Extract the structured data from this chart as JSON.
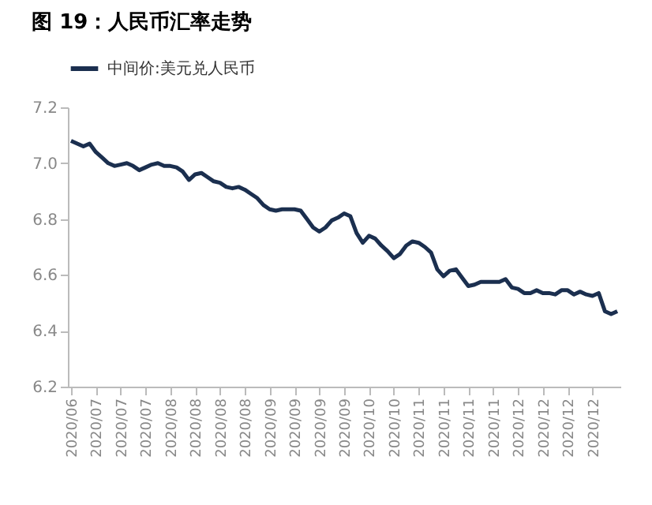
{
  "chart_data": {
    "type": "line",
    "title": "图 19：人民币汇率走势",
    "categories": [
      "2020/06",
      null,
      null,
      null,
      "2020/07",
      null,
      null,
      null,
      "2020/07",
      null,
      null,
      null,
      "2020/07",
      null,
      null,
      null,
      "2020/08",
      null,
      null,
      null,
      "2020/08",
      null,
      null,
      null,
      "2020/08",
      null,
      null,
      null,
      "2020/08",
      null,
      null,
      null,
      "2020/09",
      null,
      null,
      null,
      "2020/09",
      null,
      null,
      null,
      "2020/09",
      null,
      null,
      null,
      "2020/09",
      null,
      null,
      null,
      "2020/10",
      null,
      null,
      null,
      "2020/10",
      null,
      null,
      null,
      "2020/11",
      null,
      null,
      null,
      "2020/11",
      null,
      null,
      null,
      "2020/11",
      null,
      null,
      null,
      "2020/11",
      null,
      null,
      null,
      "2020/12",
      null,
      null,
      null,
      "2020/12",
      null,
      null,
      null,
      "2020/12",
      null,
      null,
      null,
      "2020/12",
      null,
      null,
      null,
      null
    ],
    "series": [
      {
        "name": "中间价:美元兑人民币",
        "color": "#1b2f4f",
        "values": [
          7.08,
          7.07,
          7.06,
          7.07,
          7.04,
          7.02,
          7.0,
          6.99,
          6.995,
          7.0,
          6.99,
          6.975,
          6.985,
          6.995,
          7.0,
          6.99,
          6.99,
          6.985,
          6.97,
          6.94,
          6.96,
          6.965,
          6.95,
          6.935,
          6.93,
          6.915,
          6.91,
          6.915,
          6.905,
          6.89,
          6.875,
          6.85,
          6.835,
          6.83,
          6.835,
          6.835,
          6.835,
          6.83,
          6.8,
          6.77,
          6.755,
          6.77,
          6.795,
          6.805,
          6.82,
          6.81,
          6.75,
          6.715,
          6.74,
          6.73,
          6.705,
          6.685,
          6.66,
          6.675,
          6.705,
          6.72,
          6.715,
          6.7,
          6.68,
          6.62,
          6.595,
          6.615,
          6.62,
          6.59,
          6.56,
          6.565,
          6.575,
          6.575,
          6.575,
          6.575,
          6.585,
          6.555,
          6.55,
          6.535,
          6.535,
          6.545,
          6.535,
          6.535,
          6.53,
          6.545,
          6.545,
          6.53,
          6.54,
          6.53,
          6.525,
          6.535,
          6.47,
          6.46,
          6.47
        ]
      }
    ],
    "ylim": [
      6.2,
      7.2
    ],
    "yticks": [
      6.2,
      6.4,
      6.6,
      6.8,
      {
        "value": 7,
        "label": "7.0"
      },
      7.2
    ],
    "grid": false,
    "legend": "top",
    "line_style": "solid",
    "marker": "none"
  }
}
